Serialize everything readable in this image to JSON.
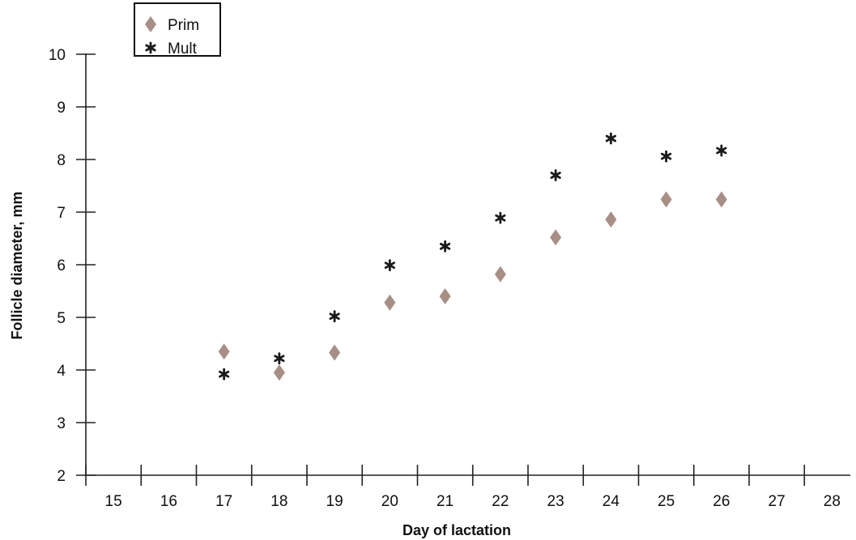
{
  "chart_data": {
    "type": "scatter",
    "xlabel": "Day of lactation",
    "ylabel": "Follicle diameter, mm",
    "xlim": [
      15,
      28
    ],
    "ylim": [
      2,
      10
    ],
    "x_ticks": [
      15,
      16,
      17,
      18,
      19,
      20,
      21,
      22,
      23,
      24,
      25,
      26,
      27,
      28
    ],
    "y_ticks": [
      2,
      3,
      4,
      5,
      6,
      7,
      8,
      9,
      10
    ],
    "grid": false,
    "legend_position": "top-left",
    "series": [
      {
        "name": "Prim",
        "marker": "diamond",
        "color": "#A88F86",
        "x": [
          17,
          18,
          19,
          20,
          21,
          22,
          23,
          24,
          25,
          26
        ],
        "y": [
          4.35,
          3.95,
          4.33,
          5.28,
          5.4,
          5.82,
          6.52,
          6.86,
          7.24,
          7.24
        ]
      },
      {
        "name": "Mult",
        "marker": "asterisk",
        "color": "#1a1a1a",
        "x": [
          17,
          18,
          19,
          20,
          21,
          22,
          23,
          24,
          25,
          26
        ],
        "y": [
          3.92,
          4.22,
          5.02,
          5.99,
          6.35,
          6.89,
          7.7,
          8.4,
          8.06,
          8.17
        ]
      }
    ]
  }
}
